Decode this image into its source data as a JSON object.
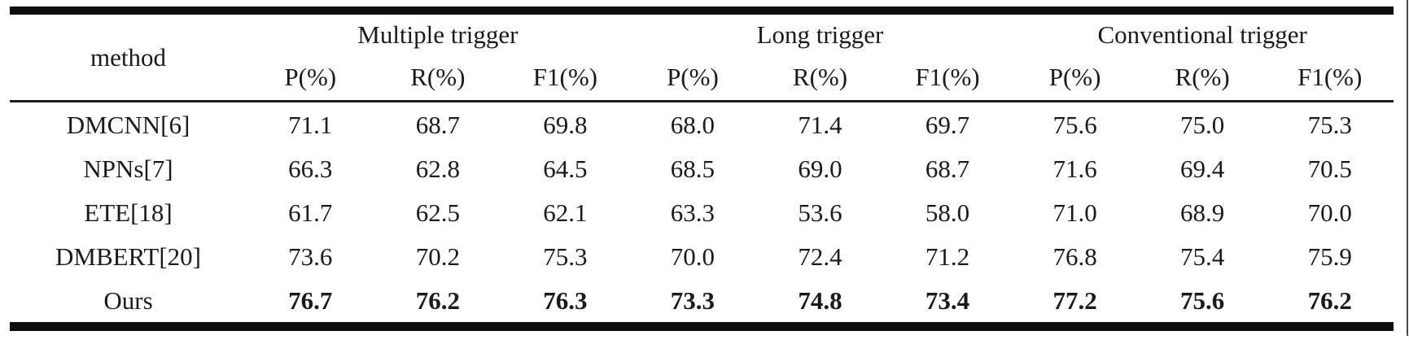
{
  "page": {
    "background_color": "#ffffff",
    "text_color": "#1a1a1a",
    "rule_color": "#0d0d0d",
    "right_edge_line_color": "#4a4a4a"
  },
  "table": {
    "header": {
      "method_label": "method",
      "groups": [
        "Multiple trigger",
        "Long trigger",
        "Conventional trigger"
      ],
      "metric_labels": [
        "P(%)",
        "R(%)",
        "F1(%)"
      ]
    },
    "rows": [
      {
        "method": "DMCNN[6]",
        "bold": false,
        "values": [
          "71.1",
          "68.7",
          "69.8",
          "68.0",
          "71.4",
          "69.7",
          "75.6",
          "75.0",
          "75.3"
        ]
      },
      {
        "method": "NPNs[7]",
        "bold": false,
        "values": [
          "66.3",
          "62.8",
          "64.5",
          "68.5",
          "69.0",
          "68.7",
          "71.6",
          "69.4",
          "70.5"
        ]
      },
      {
        "method": "ETE[18]",
        "bold": false,
        "values": [
          "61.7",
          "62.5",
          "62.1",
          "63.3",
          "53.6",
          "58.0",
          "71.0",
          "68.9",
          "70.0"
        ]
      },
      {
        "method": "DMBERT[20]",
        "bold": false,
        "values": [
          "73.6",
          "70.2",
          "75.3",
          "70.0",
          "72.4",
          "71.2",
          "76.8",
          "75.4",
          "75.9"
        ]
      },
      {
        "method": "Ours",
        "bold": true,
        "values": [
          "76.7",
          "76.2",
          "76.3",
          "73.3",
          "74.8",
          "73.4",
          "77.2",
          "75.6",
          "76.2"
        ]
      }
    ]
  },
  "chart_data": {
    "type": "table",
    "columns": [
      "method",
      "Multiple trigger P(%)",
      "Multiple trigger R(%)",
      "Multiple trigger F1(%)",
      "Long trigger P(%)",
      "Long trigger R(%)",
      "Long trigger F1(%)",
      "Conventional trigger P(%)",
      "Conventional trigger R(%)",
      "Conventional trigger F1(%)"
    ],
    "rows": [
      [
        "DMCNN[6]",
        71.1,
        68.7,
        69.8,
        68.0,
        71.4,
        69.7,
        75.6,
        75.0,
        75.3
      ],
      [
        "NPNs[7]",
        66.3,
        62.8,
        64.5,
        68.5,
        69.0,
        68.7,
        71.6,
        69.4,
        70.5
      ],
      [
        "ETE[18]",
        61.7,
        62.5,
        62.1,
        63.3,
        53.6,
        58.0,
        71.0,
        68.9,
        70.0
      ],
      [
        "DMBERT[20]",
        73.6,
        70.2,
        75.3,
        70.0,
        72.4,
        71.2,
        76.8,
        75.4,
        75.9
      ],
      [
        "Ours",
        76.7,
        76.2,
        76.3,
        73.3,
        74.8,
        73.4,
        77.2,
        75.6,
        76.2
      ]
    ],
    "bold_rows": [
      "Ours"
    ]
  }
}
